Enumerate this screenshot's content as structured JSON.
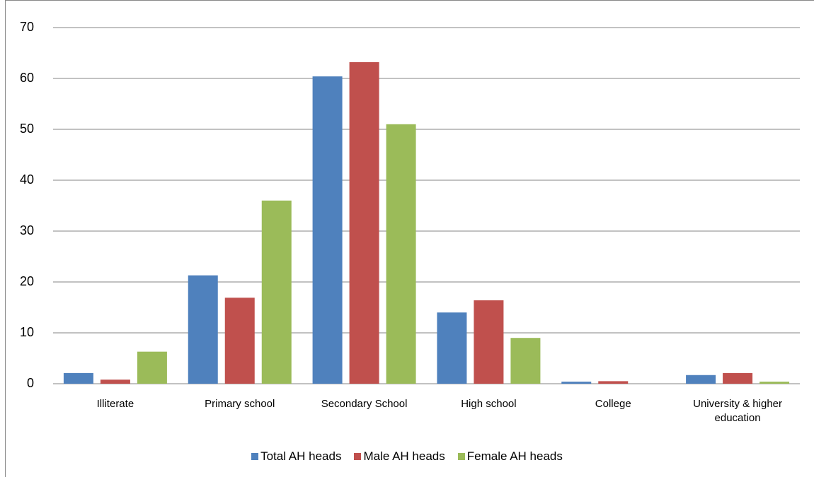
{
  "chart_data": {
    "type": "bar",
    "categories": [
      "Illiterate",
      "Primary school",
      "Secondary School",
      "High school",
      "College",
      "University & higher education"
    ],
    "series": [
      {
        "name": "Total AH heads",
        "color": "#4f81bd",
        "values": [
          2.1,
          21.3,
          60.4,
          14,
          0.4,
          1.7
        ]
      },
      {
        "name": "Male AH heads",
        "color": "#c0504d",
        "values": [
          0.8,
          16.9,
          63.2,
          16.4,
          0.5,
          2.1
        ]
      },
      {
        "name": "Female AH heads",
        "color": "#9bbb59",
        "values": [
          6.3,
          36,
          51,
          9,
          0,
          0.4
        ]
      }
    ],
    "ylim": [
      0,
      70
    ],
    "yticks": [
      0,
      10,
      20,
      30,
      40,
      50,
      60,
      70
    ],
    "grid": true,
    "legend": "bottom"
  }
}
